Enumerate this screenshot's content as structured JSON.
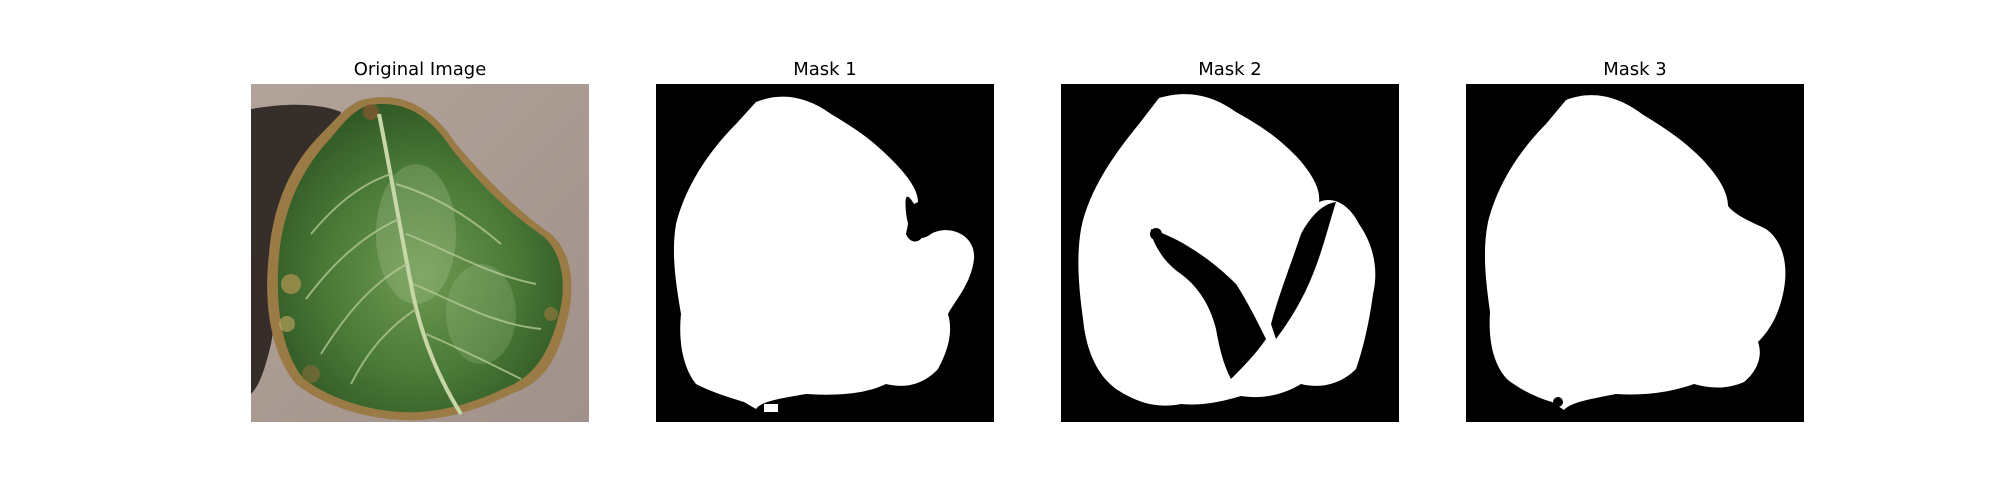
{
  "figure": {
    "panels": [
      {
        "title": "Original Image",
        "content": "leaf-photo"
      },
      {
        "title": "Mask 1",
        "content": "binary-mask"
      },
      {
        "title": "Mask 2",
        "content": "binary-mask"
      },
      {
        "title": "Mask 3",
        "content": "binary-mask"
      }
    ],
    "colors": {
      "background": "#ffffff",
      "mask_background": "#000000",
      "mask_foreground": "#ffffff",
      "cardboard": "#a99a91",
      "leaf_dark": "#2f5a25",
      "leaf_mid": "#4f7f3c",
      "leaf_light": "#8fb06a",
      "vein": "#c7d6a6",
      "leaf_edge_brown": "#8a6a3a",
      "shadow": "#2b2421"
    }
  }
}
